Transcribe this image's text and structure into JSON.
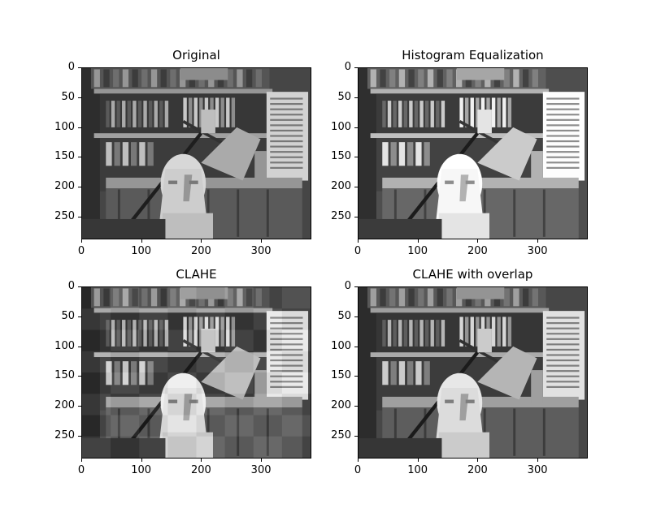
{
  "panels": [
    {
      "title": "Original",
      "variant": "original"
    },
    {
      "title": "Histogram Equalization",
      "variant": "histeq"
    },
    {
      "title": "CLAHE",
      "variant": "clahe"
    },
    {
      "title": "CLAHE with overlap",
      "variant": "clahe-overlap"
    }
  ],
  "axes": {
    "x_ticks": [
      "0",
      "100",
      "200",
      "300"
    ],
    "y_ticks": [
      "0",
      "50",
      "100",
      "150",
      "200",
      "250"
    ],
    "x_tick_values": [
      0,
      100,
      200,
      300
    ],
    "y_tick_values": [
      0,
      50,
      100,
      150,
      200,
      250
    ],
    "x_range": [
      0,
      384
    ],
    "y_range": [
      288,
      0
    ]
  },
  "colors": {
    "frame": "#000000",
    "background": "#ffffff"
  }
}
